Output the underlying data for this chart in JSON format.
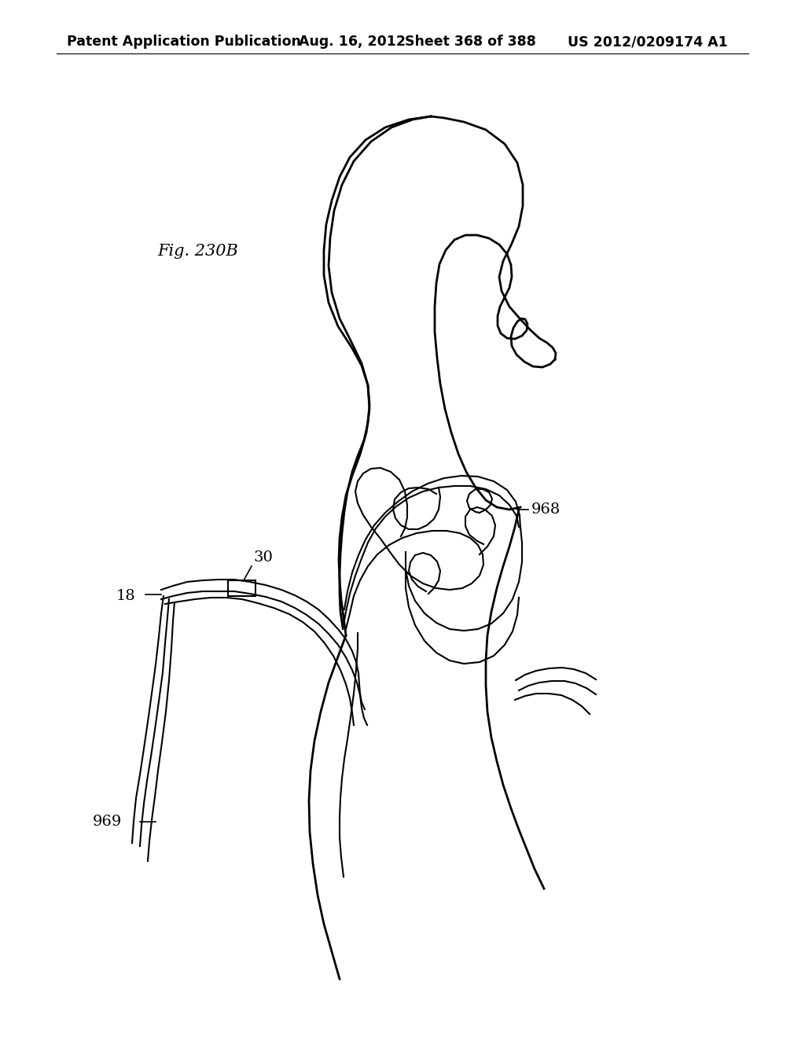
{
  "title": "Patent Application Publication",
  "date": "Aug. 16, 2012",
  "sheet": "Sheet 368 of 388",
  "patent_num": "US 2012/0209174 A1",
  "fig_label": "Fig. 230B",
  "bg_color": "#ffffff",
  "line_color": "#000000",
  "header_fontsize": 12.5,
  "label_fontsize": 14,
  "fig_label_fontsize": 15
}
